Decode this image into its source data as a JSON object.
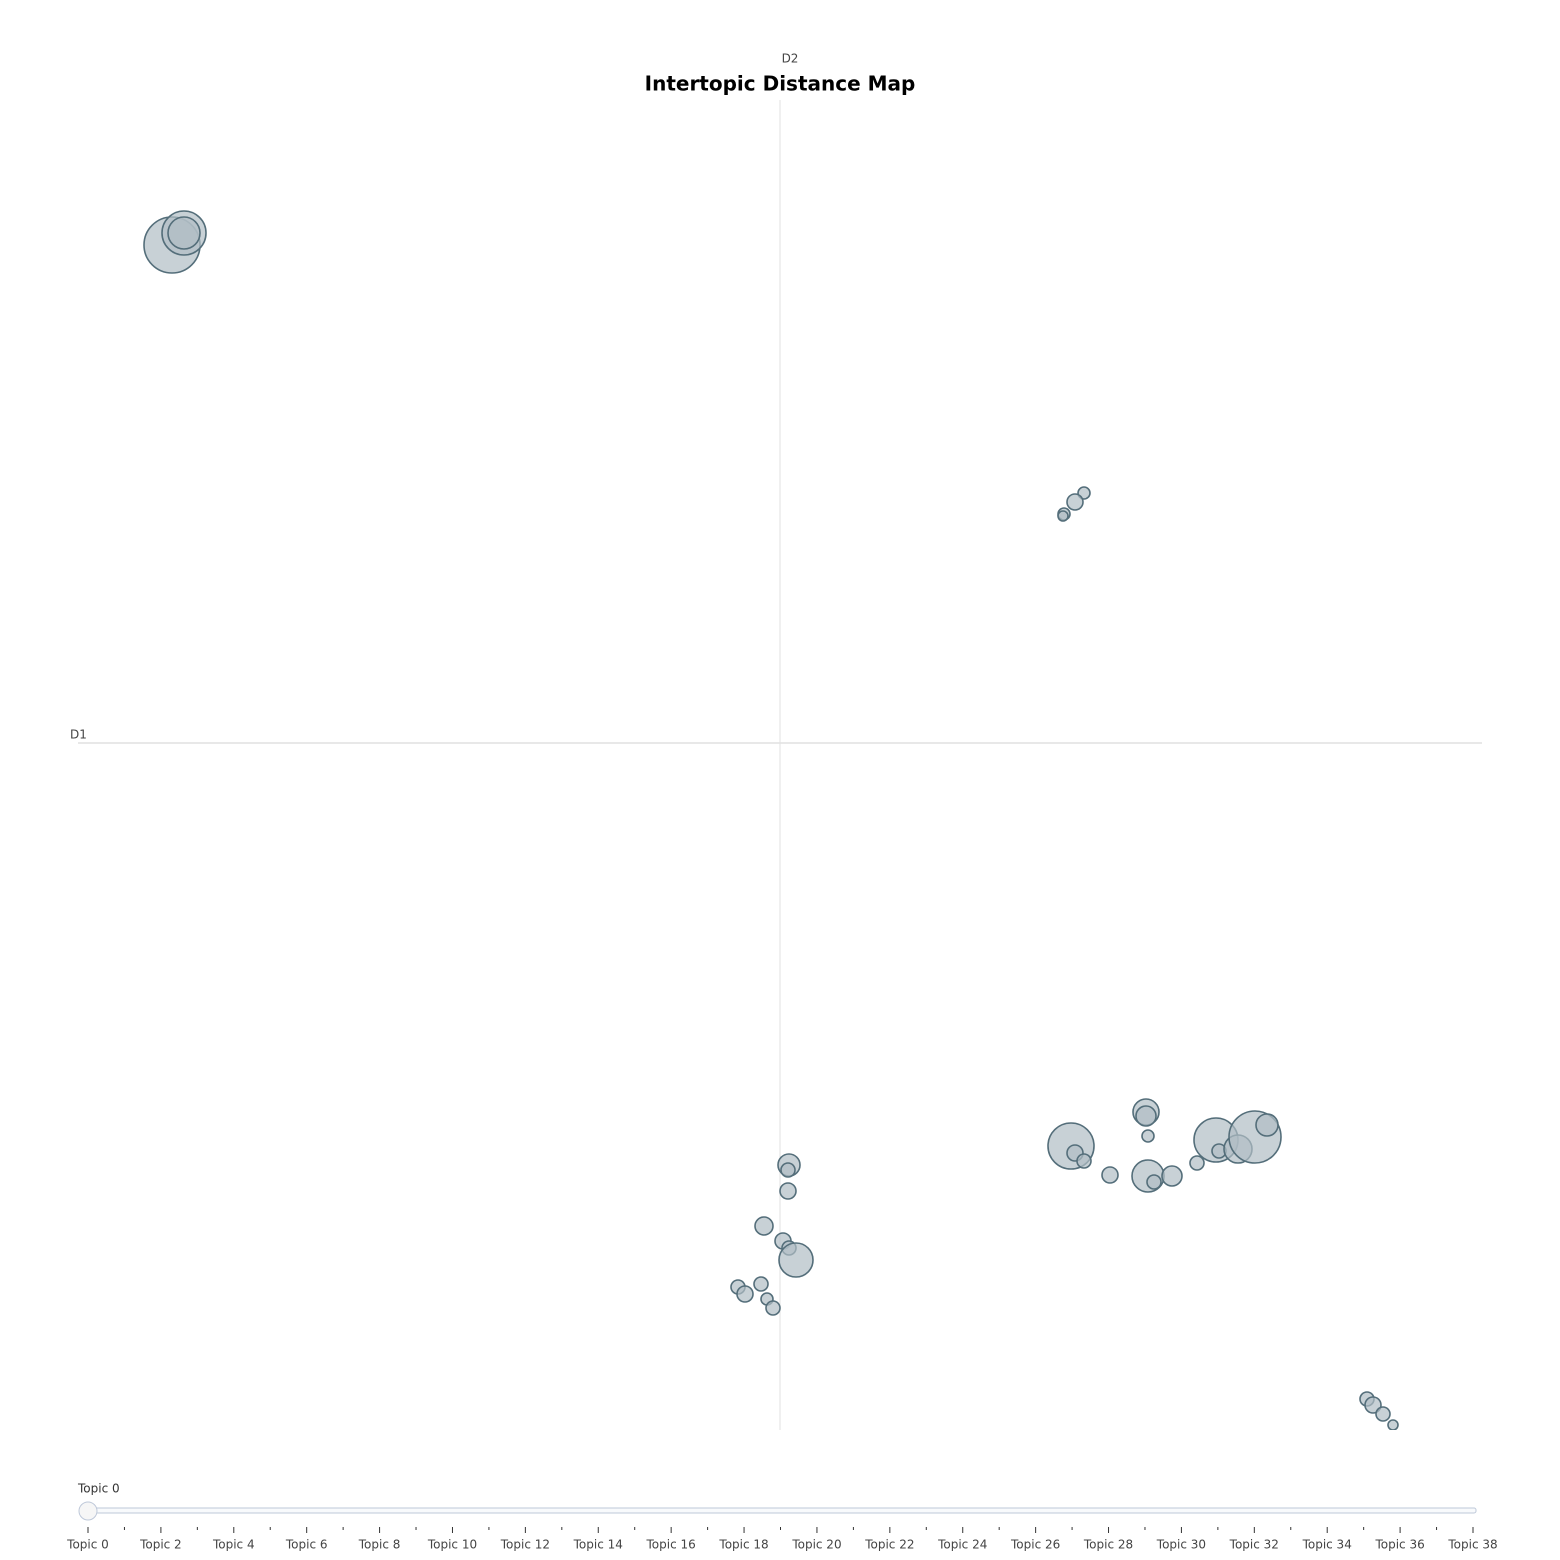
{
  "chart_data": {
    "type": "bubble",
    "title": "Intertopic Distance Map",
    "xlabel": "D1",
    "ylabel": "D2",
    "xlim": [
      -70.2,
      70.2
    ],
    "ylim": [
      -68.7,
      64.3
    ],
    "color": "#b0bec5",
    "edge_color": "#546e7a",
    "series": [
      {
        "x": [
          -60.8,
          -59.6,
          -59.6,
          30.4,
          29.5,
          28.4,
          28.3,
          29.1,
          29.5,
          30.4,
          33.0,
          36.6,
          36.6,
          36.8,
          36.8,
          37.4,
          39.2,
          41.7,
          43.6,
          43.9,
          45.8,
          47.5,
          48.7,
          0.9,
          0.8,
          0.8,
          -1.6,
          0.3,
          0.9,
          1.6,
          -4.2,
          -3.5,
          -1.9,
          -1.3,
          -0.7,
          58.7,
          59.3,
          60.3,
          61.3
        ],
        "y": [
          49.8,
          51.0,
          51.0,
          25.0,
          24.1,
          22.9,
          22.7,
          -40.3,
          -41.0,
          -41.8,
          -43.2,
          -36.9,
          -37.3,
          -39.3,
          -43.3,
          -43.9,
          -43.3,
          -42.0,
          -39.7,
          -40.8,
          -40.6,
          -39.4,
          -38.2,
          -42.2,
          -42.7,
          -44.8,
          -48.3,
          -49.8,
          -50.5,
          -51.7,
          -54.4,
          -55.1,
          -54.1,
          -55.6,
          -56.5,
          -65.6,
          -66.2,
          -67.1,
          -68.2
        ],
        "sizes": [
          28,
          22,
          16,
          6,
          8,
          6,
          5,
          23,
          8,
          7,
          8,
          13,
          10,
          6,
          16,
          7,
          10,
          7,
          22,
          7,
          14,
          26,
          11,
          11,
          7,
          8,
          9,
          8,
          7,
          17,
          7,
          8,
          7,
          6,
          7,
          7,
          8,
          7,
          5
        ]
      }
    ],
    "slider": {
      "current": "Topic 0",
      "steps": [
        "Topic 0",
        null,
        "Topic 2",
        null,
        "Topic 4",
        null,
        "Topic 6",
        null,
        "Topic 8",
        null,
        "Topic 10",
        null,
        "Topic 12",
        null,
        "Topic 14",
        null,
        "Topic 16",
        null,
        "Topic 18",
        null,
        "Topic 20",
        null,
        "Topic 22",
        null,
        "Topic 24",
        null,
        "Topic 26",
        null,
        "Topic 28",
        null,
        "Topic 30",
        null,
        "Topic 32",
        null,
        "Topic 34",
        null,
        "Topic 36",
        null,
        "Topic 38"
      ]
    }
  }
}
